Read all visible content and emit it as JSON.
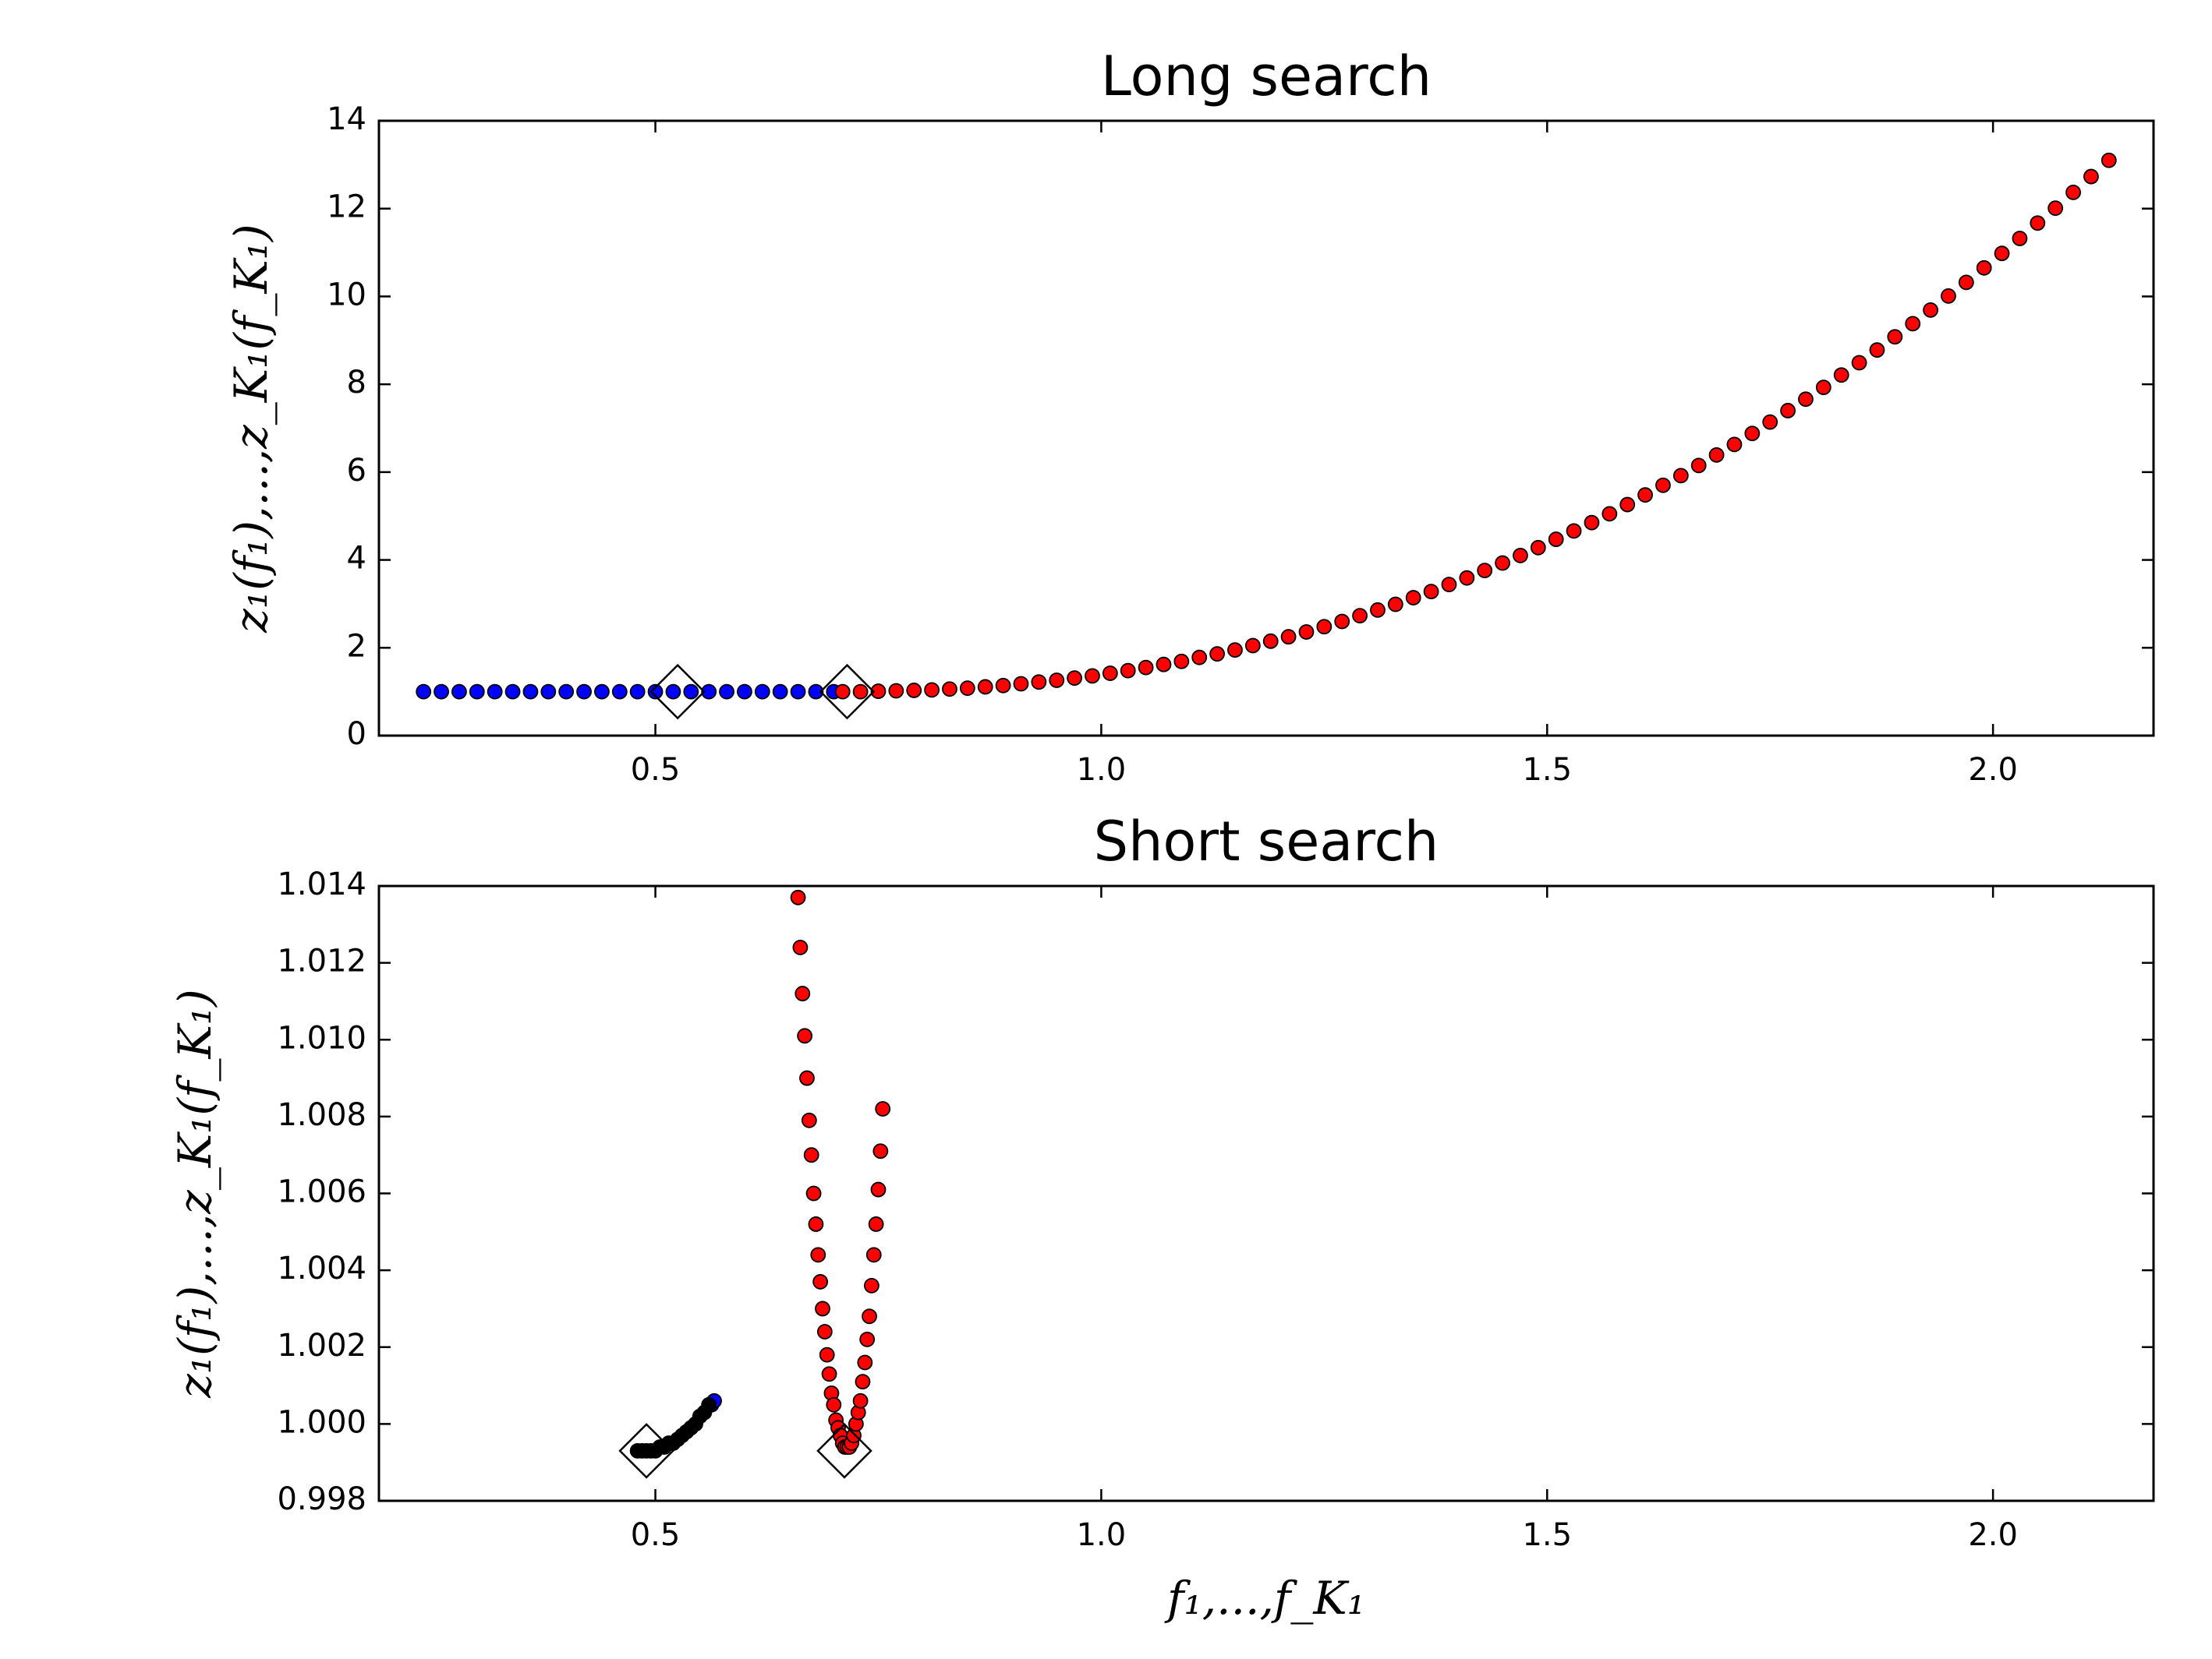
{
  "chart_data": [
    {
      "type": "scatter",
      "title": "Long search",
      "ylabel": "z₁(f₁),...,z_K₁(f_K₁)",
      "xlim": [
        0.19,
        2.18
      ],
      "xticks": [
        0.5,
        {
          "value": 1,
          "label": "1.0"
        },
        1.5,
        {
          "value": 2,
          "label": "2.0"
        }
      ],
      "ylim": [
        0,
        14
      ],
      "yticks": [
        0,
        2,
        4,
        6,
        8,
        10,
        12,
        14
      ],
      "grid": false,
      "series": [
        {
          "color": "#0000ff",
          "marker": "circle",
          "x": [
            0.24,
            0.26,
            0.28,
            0.3,
            0.32,
            0.34,
            0.36,
            0.38,
            0.4,
            0.42,
            0.44,
            0.46,
            0.48,
            0.5,
            0.52,
            0.54,
            0.56,
            0.58,
            0.6,
            0.62,
            0.64,
            0.66,
            0.68,
            0.7
          ],
          "values": [
            1,
            1,
            1,
            1,
            1,
            1,
            1,
            1,
            1,
            1,
            1,
            1,
            1,
            1,
            1,
            1,
            1,
            1,
            1,
            1,
            1,
            1,
            1,
            1
          ]
        },
        {
          "color": "#ff0000",
          "marker": "circle",
          "x": [
            0.71,
            0.73,
            0.75,
            0.77,
            0.79,
            0.81,
            0.83,
            0.85,
            0.87,
            0.89,
            0.91,
            0.93,
            0.95,
            0.97,
            0.99,
            1.01,
            1.03,
            1.05,
            1.07,
            1.09,
            1.11,
            1.13,
            1.15,
            1.17,
            1.19,
            1.21,
            1.23,
            1.25,
            1.27,
            1.29,
            1.31,
            1.33,
            1.35,
            1.37,
            1.39,
            1.41,
            1.43,
            1.45,
            1.47,
            1.49,
            1.51,
            1.53,
            1.55,
            1.57,
            1.59,
            1.61,
            1.63,
            1.65,
            1.67,
            1.69,
            1.71,
            1.73,
            1.75,
            1.77,
            1.79,
            1.81,
            1.83,
            1.85,
            1.87,
            1.89,
            1.91,
            1.93,
            1.95,
            1.97,
            1.99,
            2.01,
            2.03,
            2.05,
            2.07,
            2.09,
            2.11,
            2.13
          ],
          "values": [
            1.0,
            1.0,
            1.01,
            1.02,
            1.03,
            1.04,
            1.06,
            1.08,
            1.11,
            1.14,
            1.18,
            1.22,
            1.26,
            1.31,
            1.36,
            1.42,
            1.48,
            1.55,
            1.62,
            1.69,
            1.78,
            1.86,
            1.95,
            2.05,
            2.15,
            2.25,
            2.36,
            2.48,
            2.6,
            2.73,
            2.86,
            2.99,
            3.14,
            3.28,
            3.44,
            3.59,
            3.76,
            3.93,
            4.1,
            4.28,
            4.47,
            4.66,
            4.85,
            5.05,
            5.26,
            5.48,
            5.7,
            5.92,
            6.15,
            6.39,
            6.63,
            6.88,
            7.14,
            7.4,
            7.66,
            7.93,
            8.21,
            8.49,
            8.78,
            9.08,
            9.38,
            9.69,
            10.01,
            10.32,
            10.65,
            10.98,
            11.32,
            11.67,
            12.01,
            12.37,
            12.73,
            13.1
          ]
        },
        {
          "color": "#000000",
          "marker": "diamond",
          "x": [
            0.525,
            0.715
          ],
          "values": [
            1,
            1
          ]
        }
      ]
    },
    {
      "type": "scatter",
      "title": "Short search",
      "ylabel": "z₁(f₁),...,z_K₁(f_K₁)",
      "xlabel": "f₁,...,f_K₁",
      "xlim": [
        0.19,
        2.18
      ],
      "xticks": [
        0.5,
        {
          "value": 1,
          "label": "1.0"
        },
        1.5,
        {
          "value": 2,
          "label": "2.0"
        }
      ],
      "ylim": [
        0.998,
        1.014
      ],
      "yticks": [
        0.998,
        {
          "value": 1,
          "label": "1.000"
        },
        1.002,
        1.004,
        1.006,
        1.008,
        {
          "value": 1.01,
          "label": "1.010"
        },
        1.012,
        1.014
      ],
      "grid": false,
      "series": [
        {
          "color": "#0000ff",
          "marker": "circle",
          "x": [
            0.563,
            0.566
          ],
          "values": [
            1.0005,
            1.0006
          ]
        },
        {
          "color": "#000000",
          "marker": "circle",
          "x": [
            0.48,
            0.485,
            0.49,
            0.495,
            0.5,
            0.505,
            0.51,
            0.515,
            0.52,
            0.525,
            0.53,
            0.535,
            0.54,
            0.545,
            0.55,
            0.555,
            0.56
          ],
          "values": [
            0.9993,
            0.9993,
            0.9993,
            0.9993,
            0.9993,
            0.9994,
            0.9994,
            0.9995,
            0.9995,
            0.9996,
            0.9997,
            0.9998,
            0.9999,
            1.0,
            1.0002,
            1.0003,
            1.0005
          ]
        },
        {
          "color": "#ff0000",
          "marker": "circle",
          "x": [
            0.66,
            0.6625,
            0.665,
            0.6675,
            0.67,
            0.6725,
            0.675,
            0.6775,
            0.68,
            0.6825,
            0.685,
            0.6875,
            0.69,
            0.6925,
            0.695,
            0.6975,
            0.7,
            0.7025,
            0.705,
            0.7075,
            0.71,
            0.7125,
            0.715,
            0.7175,
            0.72,
            0.7225,
            0.725,
            0.7275,
            0.73,
            0.7325,
            0.735,
            0.7375,
            0.74,
            0.7425,
            0.745,
            0.7475,
            0.75,
            0.7525,
            0.755
          ],
          "values": [
            1.0137,
            1.0124,
            1.0112,
            1.0101,
            1.009,
            1.0079,
            1.007,
            1.006,
            1.0052,
            1.0044,
            1.0037,
            1.003,
            1.0024,
            1.0018,
            1.0013,
            1.0008,
            1.0005,
            1.0001,
            0.9999,
            0.9997,
            0.9995,
            0.9994,
            0.9994,
            0.9994,
            0.9995,
            0.9997,
            1.0,
            1.0003,
            1.0006,
            1.0011,
            1.0016,
            1.0022,
            1.0028,
            1.0036,
            1.0044,
            1.0052,
            1.0061,
            1.0071,
            1.0082
          ]
        },
        {
          "color": "#000000",
          "marker": "diamond",
          "x": [
            0.49,
            0.712
          ],
          "values": [
            0.9993,
            0.9993
          ]
        }
      ]
    }
  ]
}
